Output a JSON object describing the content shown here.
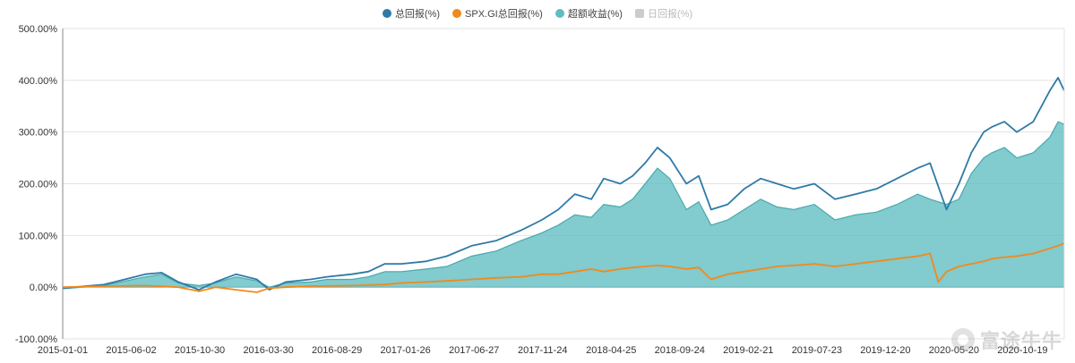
{
  "legend": [
    {
      "label": "总回报(%)",
      "color": "#2e7aa6",
      "enabled": true
    },
    {
      "label": "SPX.GI总回报(%)",
      "color": "#f08a1c",
      "enabled": true
    },
    {
      "label": "超额收益(%)",
      "color": "#5fbcc0",
      "enabled": true
    },
    {
      "label": "日回报(%)",
      "color": "#cccccc",
      "enabled": false
    }
  ],
  "watermark": {
    "text": "富途牛牛",
    "icon": "futu-logo-icon"
  },
  "chart_data": {
    "type": "area",
    "ylim": [
      -100,
      500
    ],
    "yticks": [
      "500.00%",
      "400.00%",
      "300.00%",
      "200.00%",
      "100.00%",
      "0.00%",
      "-100.00%"
    ],
    "xticks": [
      "2015-01-01",
      "2015-06-02",
      "2015-10-30",
      "2016-03-30",
      "2016-08-29",
      "2017-01-26",
      "2017-06-27",
      "2017-11-24",
      "2018-04-25",
      "2018-09-24",
      "2019-02-21",
      "2019-07-23",
      "2019-12-20",
      "2020-05-20",
      "2020-10-19"
    ],
    "grid": true,
    "legend_position": "top-center",
    "series": [
      {
        "name": "总回报(%)",
        "kind": "line",
        "color": "#2e7aa6",
        "points": [
          [
            0,
            -2
          ],
          [
            20,
            5
          ],
          [
            40,
            25
          ],
          [
            48,
            28
          ],
          [
            56,
            10
          ],
          [
            66,
            -5
          ],
          [
            74,
            10
          ],
          [
            84,
            25
          ],
          [
            94,
            15
          ],
          [
            100,
            -5
          ],
          [
            108,
            10
          ],
          [
            120,
            15
          ],
          [
            128,
            20
          ],
          [
            140,
            25
          ],
          [
            148,
            30
          ],
          [
            156,
            45
          ],
          [
            164,
            45
          ],
          [
            176,
            50
          ],
          [
            186,
            60
          ],
          [
            198,
            80
          ],
          [
            210,
            90
          ],
          [
            222,
            110
          ],
          [
            232,
            130
          ],
          [
            240,
            150
          ],
          [
            248,
            180
          ],
          [
            256,
            170
          ],
          [
            262,
            210
          ],
          [
            270,
            200
          ],
          [
            276,
            215
          ],
          [
            282,
            240
          ],
          [
            288,
            270
          ],
          [
            294,
            250
          ],
          [
            302,
            200
          ],
          [
            308,
            215
          ],
          [
            314,
            150
          ],
          [
            322,
            160
          ],
          [
            330,
            190
          ],
          [
            338,
            210
          ],
          [
            346,
            200
          ],
          [
            354,
            190
          ],
          [
            364,
            200
          ],
          [
            374,
            170
          ],
          [
            384,
            180
          ],
          [
            394,
            190
          ],
          [
            404,
            210
          ],
          [
            414,
            230
          ],
          [
            420,
            240
          ],
          [
            428,
            150
          ],
          [
            434,
            200
          ],
          [
            440,
            260
          ],
          [
            446,
            300
          ],
          [
            450,
            310
          ],
          [
            456,
            320
          ],
          [
            462,
            300
          ],
          [
            470,
            320
          ],
          [
            478,
            380
          ],
          [
            482,
            405
          ],
          [
            485,
            380
          ]
        ]
      },
      {
        "name": "超额收益(%)",
        "kind": "area",
        "color": "#5fbcc0",
        "points": [
          [
            0,
            -3
          ],
          [
            20,
            3
          ],
          [
            40,
            20
          ],
          [
            48,
            25
          ],
          [
            56,
            8
          ],
          [
            66,
            3
          ],
          [
            74,
            8
          ],
          [
            84,
            20
          ],
          [
            94,
            12
          ],
          [
            100,
            0
          ],
          [
            108,
            8
          ],
          [
            120,
            10
          ],
          [
            128,
            15
          ],
          [
            140,
            15
          ],
          [
            148,
            20
          ],
          [
            156,
            30
          ],
          [
            164,
            30
          ],
          [
            176,
            35
          ],
          [
            186,
            40
          ],
          [
            198,
            60
          ],
          [
            210,
            70
          ],
          [
            222,
            90
          ],
          [
            232,
            105
          ],
          [
            240,
            120
          ],
          [
            248,
            140
          ],
          [
            256,
            135
          ],
          [
            262,
            160
          ],
          [
            270,
            155
          ],
          [
            276,
            170
          ],
          [
            282,
            200
          ],
          [
            288,
            230
          ],
          [
            294,
            210
          ],
          [
            302,
            150
          ],
          [
            308,
            165
          ],
          [
            314,
            120
          ],
          [
            322,
            130
          ],
          [
            330,
            150
          ],
          [
            338,
            170
          ],
          [
            346,
            155
          ],
          [
            354,
            150
          ],
          [
            364,
            160
          ],
          [
            374,
            130
          ],
          [
            384,
            140
          ],
          [
            394,
            145
          ],
          [
            404,
            160
          ],
          [
            414,
            180
          ],
          [
            420,
            170
          ],
          [
            428,
            160
          ],
          [
            434,
            170
          ],
          [
            440,
            220
          ],
          [
            446,
            250
          ],
          [
            450,
            260
          ],
          [
            456,
            270
          ],
          [
            462,
            250
          ],
          [
            470,
            260
          ],
          [
            478,
            290
          ],
          [
            482,
            320
          ],
          [
            485,
            315
          ]
        ]
      },
      {
        "name": "SPX.GI总回报(%)",
        "kind": "line",
        "color": "#f08a1c",
        "points": [
          [
            0,
            0
          ],
          [
            20,
            2
          ],
          [
            40,
            3
          ],
          [
            56,
            0
          ],
          [
            66,
            -8
          ],
          [
            74,
            0
          ],
          [
            84,
            -5
          ],
          [
            94,
            -10
          ],
          [
            100,
            -2
          ],
          [
            108,
            0
          ],
          [
            120,
            2
          ],
          [
            140,
            3
          ],
          [
            156,
            5
          ],
          [
            164,
            8
          ],
          [
            176,
            10
          ],
          [
            186,
            12
          ],
          [
            198,
            15
          ],
          [
            210,
            18
          ],
          [
            222,
            20
          ],
          [
            232,
            25
          ],
          [
            240,
            25
          ],
          [
            248,
            30
          ],
          [
            256,
            35
          ],
          [
            262,
            30
          ],
          [
            270,
            35
          ],
          [
            276,
            38
          ],
          [
            282,
            40
          ],
          [
            288,
            42
          ],
          [
            294,
            40
          ],
          [
            302,
            35
          ],
          [
            308,
            38
          ],
          [
            314,
            15
          ],
          [
            322,
            25
          ],
          [
            330,
            30
          ],
          [
            338,
            35
          ],
          [
            346,
            40
          ],
          [
            354,
            42
          ],
          [
            364,
            45
          ],
          [
            374,
            40
          ],
          [
            384,
            45
          ],
          [
            394,
            50
          ],
          [
            404,
            55
          ],
          [
            414,
            60
          ],
          [
            420,
            65
          ],
          [
            424,
            10
          ],
          [
            428,
            30
          ],
          [
            434,
            40
          ],
          [
            440,
            45
          ],
          [
            446,
            50
          ],
          [
            450,
            55
          ],
          [
            456,
            58
          ],
          [
            462,
            60
          ],
          [
            470,
            65
          ],
          [
            478,
            75
          ],
          [
            482,
            80
          ],
          [
            485,
            85
          ]
        ]
      }
    ]
  }
}
